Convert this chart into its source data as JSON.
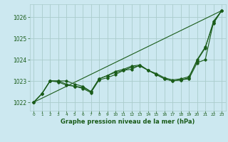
{
  "title": "Graphe pression niveau de la mer (hPa)",
  "background_color": "#cce8f0",
  "grid_color": "#aacccc",
  "line_color": "#1a5c1a",
  "marker_color": "#1a5c1a",
  "xlim": [
    -0.5,
    23.5
  ],
  "ylim": [
    1021.6,
    1026.6
  ],
  "yticks": [
    1022,
    1023,
    1024,
    1025,
    1026
  ],
  "xticks": [
    0,
    1,
    2,
    3,
    4,
    5,
    6,
    7,
    8,
    9,
    10,
    11,
    12,
    13,
    14,
    15,
    16,
    17,
    18,
    19,
    20,
    21,
    22,
    23
  ],
  "series_linear": {
    "x": [
      0,
      23
    ],
    "y": [
      1022.0,
      1026.3
    ]
  },
  "series1": {
    "x": [
      0,
      1,
      2,
      3,
      4,
      5,
      6,
      7,
      8,
      9,
      10,
      11,
      12,
      13,
      14,
      15,
      16,
      17,
      18,
      19,
      20,
      21,
      22,
      23
    ],
    "y": [
      1022.0,
      1022.4,
      1023.0,
      1022.95,
      1022.8,
      1022.75,
      1022.65,
      1022.45,
      1023.05,
      1023.15,
      1023.3,
      1023.5,
      1023.55,
      1023.75,
      1023.5,
      1023.3,
      1023.1,
      1023.0,
      1023.05,
      1023.1,
      1023.85,
      1024.0,
      1025.75,
      1026.3
    ]
  },
  "series2": {
    "x": [
      0,
      1,
      2,
      3,
      4,
      5,
      6,
      7,
      8,
      9,
      10,
      11,
      12,
      13,
      14,
      15,
      16,
      17,
      18,
      19,
      20,
      21,
      22,
      23
    ],
    "y": [
      1022.0,
      1022.4,
      1023.0,
      1023.0,
      1022.85,
      1022.75,
      1022.7,
      1022.5,
      1023.1,
      1023.25,
      1023.45,
      1023.55,
      1023.7,
      1023.75,
      1023.5,
      1023.35,
      1023.15,
      1023.05,
      1023.1,
      1023.2,
      1023.95,
      1024.55,
      1025.8,
      1026.3
    ]
  },
  "series3": {
    "x": [
      0,
      1,
      2,
      3,
      4,
      5,
      6,
      7,
      8,
      9,
      10,
      11,
      12,
      13,
      14,
      15,
      16,
      17,
      18,
      19,
      20,
      21,
      22,
      23
    ],
    "y": [
      1022.0,
      1022.4,
      1023.0,
      1023.0,
      1023.0,
      1022.85,
      1022.75,
      1022.5,
      1023.1,
      1023.25,
      1023.4,
      1023.5,
      1023.65,
      1023.7,
      1023.5,
      1023.3,
      1023.1,
      1023.0,
      1023.05,
      1023.15,
      1024.0,
      1024.6,
      1025.7,
      1026.3
    ]
  }
}
